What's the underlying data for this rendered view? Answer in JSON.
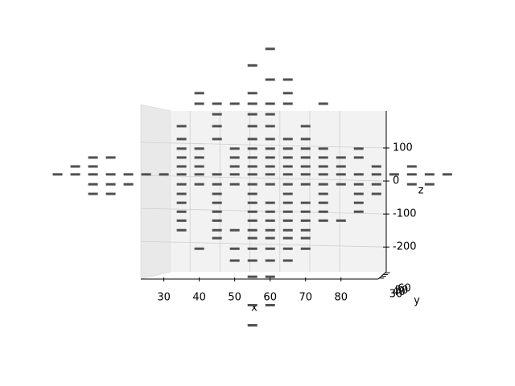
{
  "chart_data": {
    "type": "scatter3d",
    "xlabel": "x",
    "ylabel": "y",
    "zlabel": "z",
    "color": "#505050",
    "xlim": [
      23.5,
      90.5
    ],
    "xticks": [
      30,
      40,
      50,
      60,
      70,
      80
    ],
    "ylim": [
      25,
      65
    ],
    "yticks": [
      30,
      40,
      50,
      60
    ],
    "zlim": [
      -275,
      212
    ],
    "zticks": [
      -200,
      -100,
      0,
      100
    ],
    "x": [
      60,
      55,
      60,
      65,
      40,
      55,
      65,
      40,
      45,
      50,
      55,
      60,
      65,
      75,
      45,
      55,
      60,
      35,
      45,
      55,
      60,
      70,
      35,
      45,
      55,
      60,
      65,
      70,
      35,
      40,
      50,
      55,
      60,
      65,
      70,
      75,
      85,
      10,
      15,
      35,
      40,
      50,
      55,
      60,
      65,
      70,
      75,
      80,
      85,
      5,
      10,
      35,
      40,
      50,
      55,
      60,
      65,
      70,
      75,
      80,
      90,
      100,
      0,
      5,
      10,
      15,
      20,
      25,
      30,
      35,
      40,
      45,
      50,
      55,
      60,
      65,
      70,
      75,
      80,
      85,
      90,
      95,
      100,
      105,
      110,
      10,
      15,
      20,
      35,
      40,
      45,
      50,
      55,
      60,
      65,
      70,
      75,
      80,
      85,
      90,
      100,
      105,
      10,
      15,
      35,
      45,
      55,
      65,
      75,
      85,
      90,
      35,
      45,
      55,
      60,
      65,
      70,
      75,
      85,
      35,
      45,
      55,
      60,
      65,
      70,
      75,
      85,
      35,
      45,
      55,
      60,
      65,
      70,
      75,
      80,
      35,
      45,
      50,
      55,
      60,
      65,
      70,
      45,
      55,
      60,
      65,
      70,
      40,
      50,
      55,
      60,
      65,
      70,
      50,
      55,
      60,
      65,
      55,
      60,
      55,
      60,
      55
    ],
    "values": [
      400,
      350,
      307,
      307,
      266,
      266,
      266,
      234,
      234,
      234,
      234,
      234,
      234,
      234,
      202,
      202,
      202,
      166,
      166,
      166,
      166,
      166,
      127,
      127,
      127,
      127,
      127,
      127,
      98,
      98,
      98,
      98,
      98,
      98,
      98,
      98,
      98,
      71,
      71,
      71,
      71,
      71,
      71,
      71,
      71,
      71,
      71,
      71,
      71,
      44,
      44,
      44,
      44,
      44,
      44,
      44,
      44,
      44,
      44,
      44,
      44,
      44,
      20,
      20,
      20,
      20,
      20,
      20,
      20,
      20,
      20,
      20,
      20,
      20,
      20,
      20,
      20,
      20,
      20,
      20,
      20,
      20,
      20,
      20,
      20,
      -10,
      -10,
      -10,
      -10,
      -10,
      -10,
      -10,
      -10,
      -10,
      -10,
      -10,
      -10,
      -10,
      -10,
      -10,
      -10,
      -10,
      -39,
      -39,
      -39,
      -39,
      -39,
      -39,
      -39,
      -39,
      -39,
      -66,
      -66,
      -66,
      -66,
      -66,
      -66,
      -66,
      -66,
      -93,
      -93,
      -93,
      -93,
      -93,
      -93,
      -93,
      -93,
      -120,
      -120,
      -120,
      -120,
      -120,
      -120,
      -120,
      -120,
      -149,
      -149,
      -149,
      -149,
      -149,
      -149,
      -149,
      -173,
      -173,
      -173,
      -173,
      -173,
      -205,
      -205,
      -205,
      -205,
      -205,
      -205,
      -241,
      -241,
      -241,
      -241,
      -290,
      -290,
      -376,
      -376,
      -437
    ]
  }
}
